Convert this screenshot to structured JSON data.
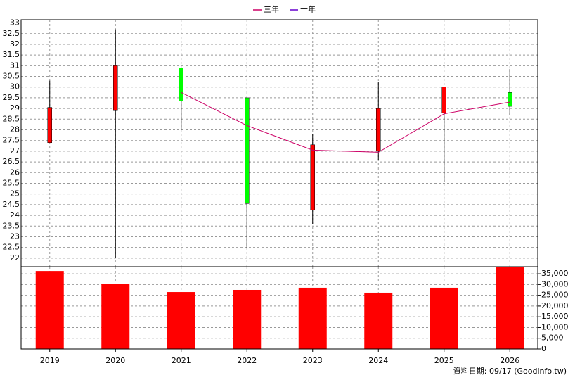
{
  "chart_data": [
    {
      "type": "candlestick",
      "up_color": "#ff0000",
      "down_color": "#00ff00",
      "wick_color": "#000000",
      "open": [
        27.4,
        28.9,
        30.9,
        29.5,
        24.25,
        27.0,
        28.8,
        29.75
      ],
      "high": [
        30.3,
        32.7,
        30.9,
        29.5,
        27.8,
        30.25,
        30.0,
        30.85
      ],
      "low": [
        27.4,
        22.0,
        28.0,
        22.45,
        23.6,
        26.6,
        25.55,
        28.7
      ],
      "close": [
        29.05,
        31.0,
        29.35,
        24.55,
        27.3,
        29.0,
        30.0,
        29.1
      ],
      "series": [
        {
          "name": "三年",
          "color": "#cc0066",
          "values": [
            null,
            null,
            29.75,
            28.2,
            27.05,
            26.95,
            28.75,
            29.3
          ]
        },
        {
          "name": "十年",
          "color": "#6600cc",
          "values": [
            null,
            null,
            null,
            null,
            null,
            null,
            null,
            null
          ]
        }
      ],
      "ylim": [
        21.6,
        33.15
      ],
      "yticks": [
        22,
        22.5,
        23,
        23.5,
        24,
        24.5,
        25,
        25.5,
        26,
        26.5,
        27,
        27.5,
        28,
        28.5,
        29,
        29.5,
        30,
        30.5,
        31,
        31.5,
        32,
        32.5,
        33
      ],
      "grid": true
    },
    {
      "type": "bar",
      "color": "#ff0000",
      "categories": [
        "2019",
        "2020",
        "2021",
        "2022",
        "2023",
        "2024",
        "2025",
        "2026"
      ],
      "values": [
        36300,
        30400,
        26500,
        27500,
        28500,
        26200,
        28500,
        38300
      ],
      "ylim": [
        0,
        38300
      ],
      "yticks": [
        0,
        {
          "value": 5000,
          "label": "5,000"
        },
        {
          "value": 10000,
          "label": "10,000"
        },
        {
          "value": 15000,
          "label": "15,000"
        },
        {
          "value": 20000,
          "label": "20,000"
        },
        {
          "value": 25000,
          "label": "25,000"
        },
        {
          "value": 30000,
          "label": "30,000"
        },
        {
          "value": 35000,
          "label": "35,000"
        }
      ],
      "grid": true,
      "footnote": "資料日期: 09/17  (Goodinfo.tw)"
    }
  ]
}
